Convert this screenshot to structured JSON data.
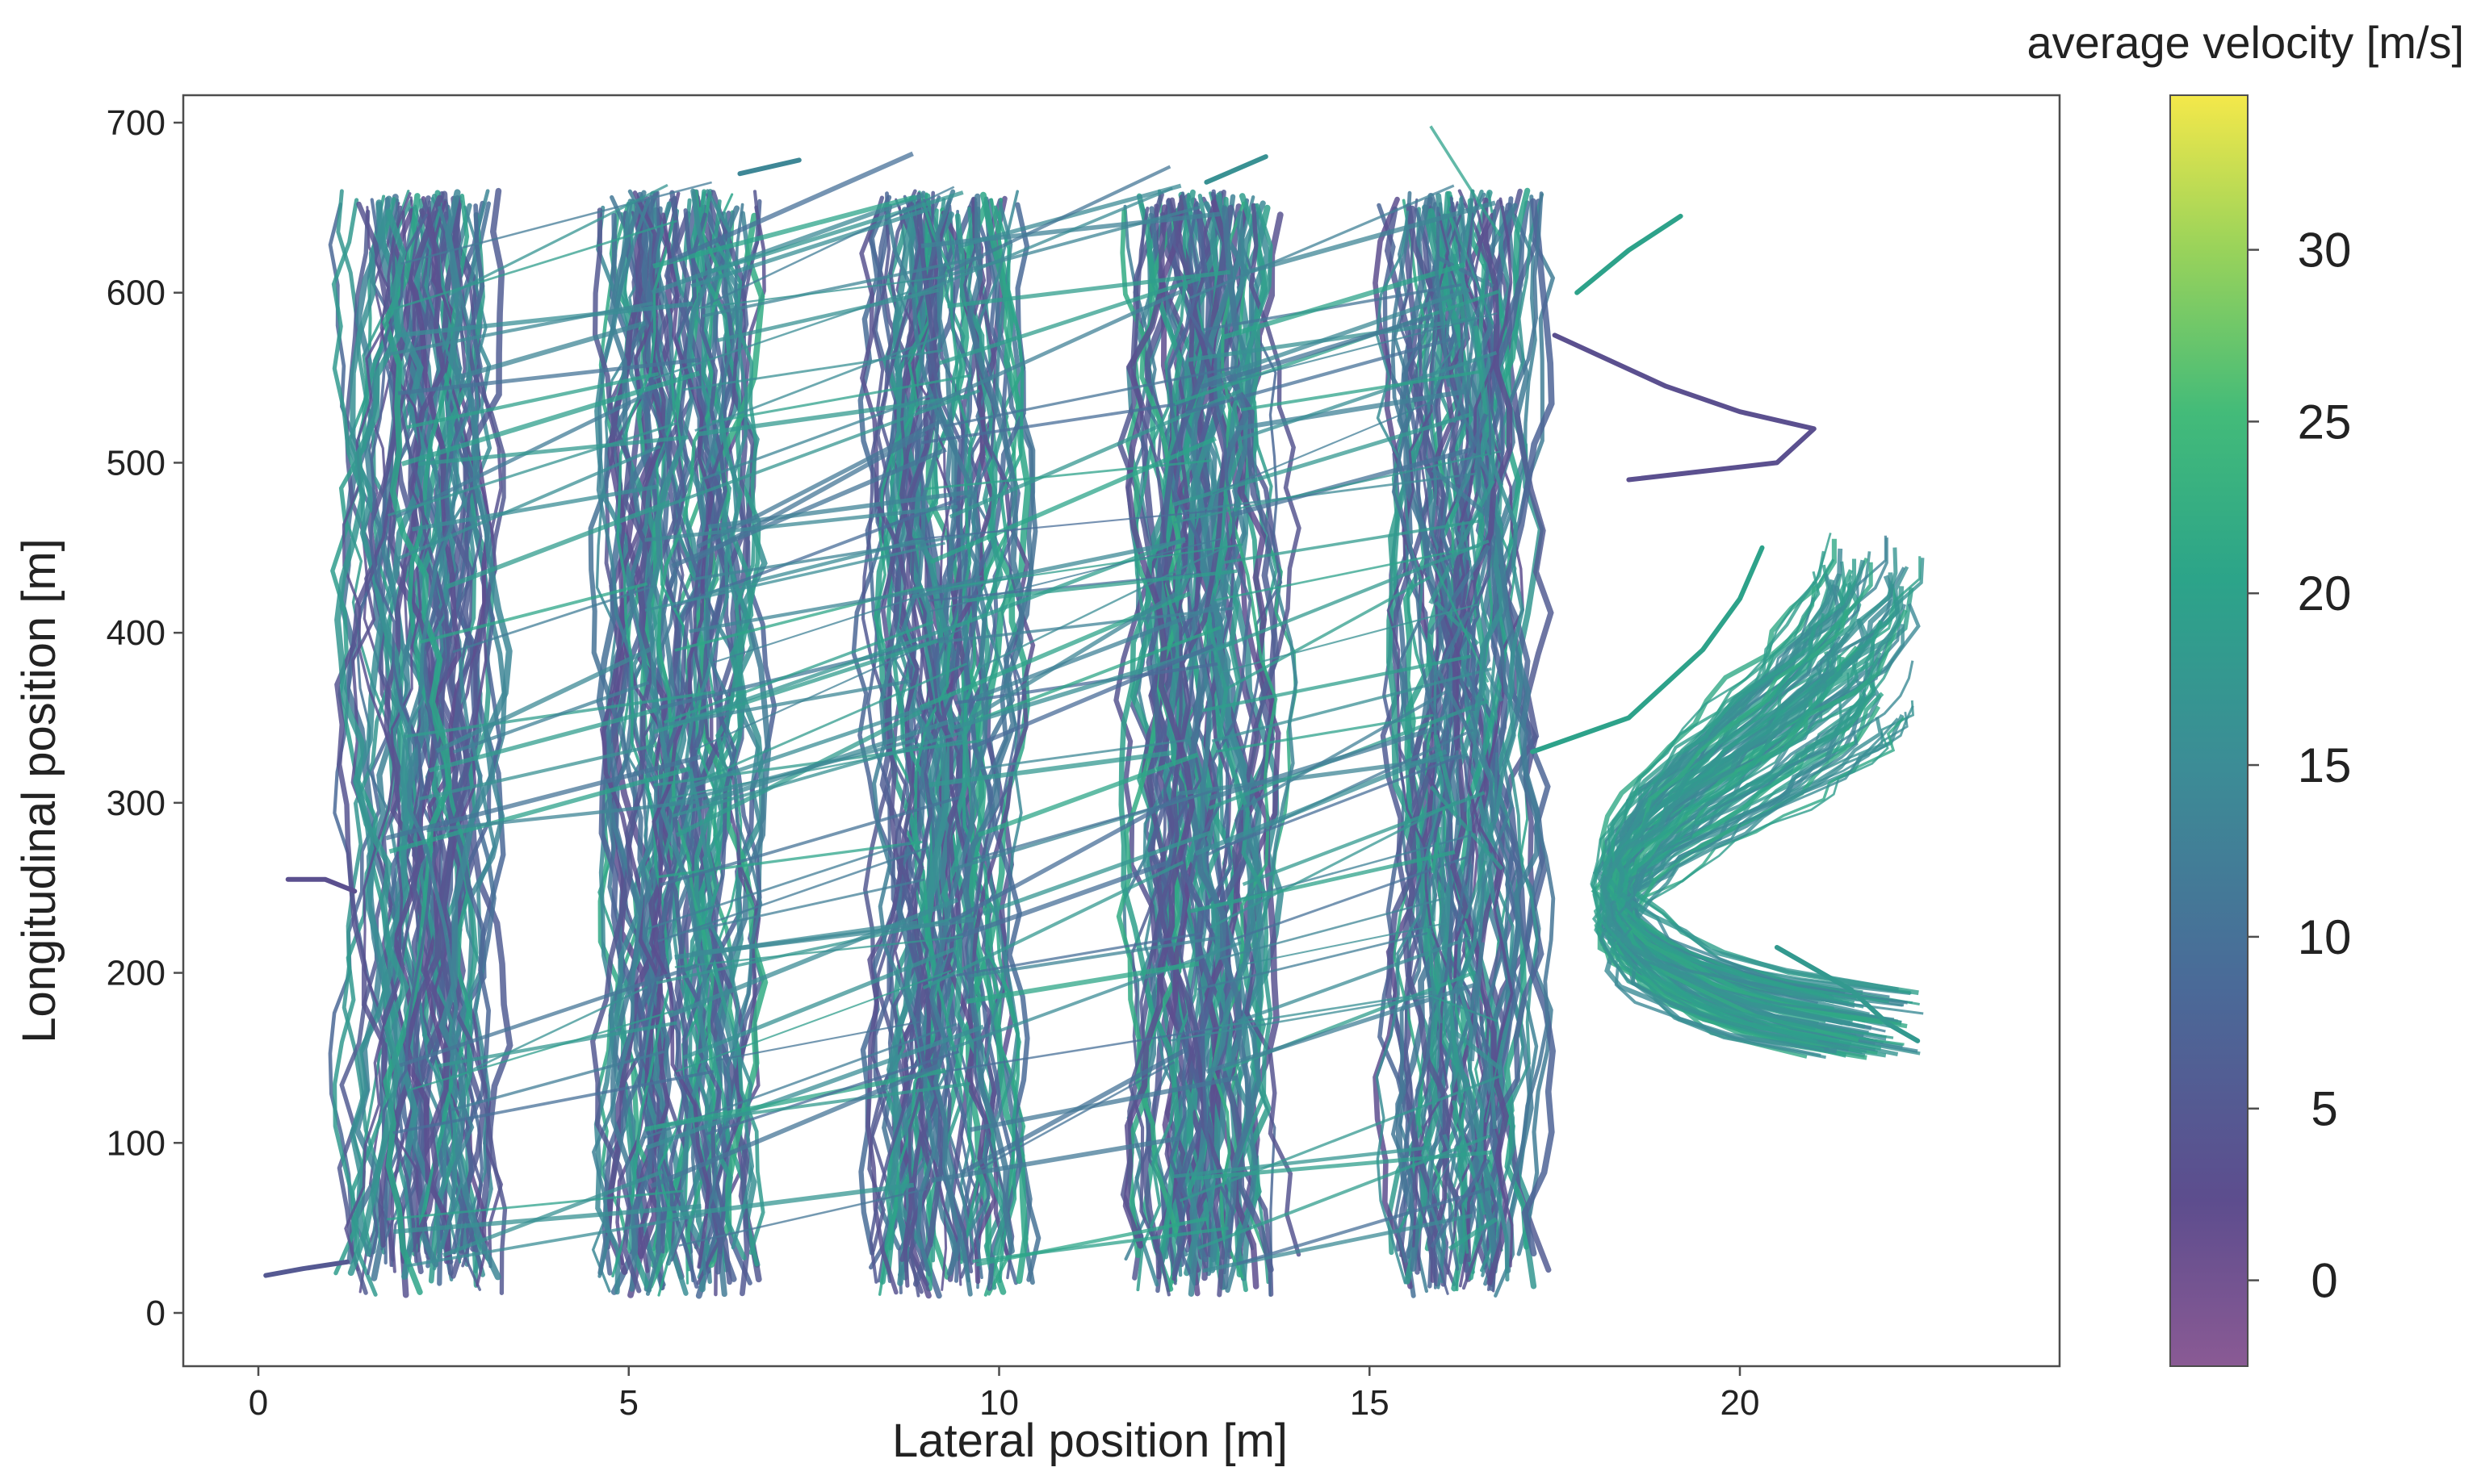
{
  "chart_data": {
    "type": "scatter",
    "title": "",
    "xlabel": "Lateral position [m]",
    "ylabel": "Longitudinal position [m]",
    "xlim": [
      -1,
      24.3
    ],
    "ylim": [
      -35,
      715
    ],
    "x_ticks": [
      0,
      5,
      10,
      15,
      20
    ],
    "y_ticks": [
      0,
      100,
      200,
      300,
      400,
      500,
      600,
      700
    ],
    "grid": false,
    "colormap": "viridis",
    "colorbar": {
      "label": "average velocity [m/s]",
      "range": [
        -2.5,
        34.5
      ],
      "ticks": [
        0,
        5,
        10,
        15,
        20,
        25,
        30
      ]
    },
    "lanes": [
      {
        "center_x": 2.2,
        "y_range": [
          10,
          660
        ]
      },
      {
        "center_x": 5.7,
        "y_range": [
          10,
          660
        ]
      },
      {
        "center_x": 9.3,
        "y_range": [
          10,
          660
        ]
      },
      {
        "center_x": 12.8,
        "y_range": [
          10,
          660
        ]
      },
      {
        "center_x": 16.3,
        "y_range": [
          10,
          660
        ]
      }
    ],
    "ramp": {
      "x_range": [
        17.0,
        22.5
      ],
      "y_range": [
        150,
        460
      ]
    },
    "notable_trajectories": [
      {
        "x": [
          17.5,
          19.0,
          20.0,
          21.0,
          20.5,
          19.5,
          18.5
        ],
        "y": [
          575,
          545,
          530,
          520,
          500,
          495,
          490
        ],
        "velocity": 3
      },
      {
        "x": [
          0.4,
          0.9,
          1.3
        ],
        "y": [
          255,
          255,
          248
        ],
        "velocity": 3
      },
      {
        "x": [
          0.1,
          0.6,
          1.2
        ],
        "y": [
          22,
          26,
          30
        ],
        "velocity": 5
      },
      {
        "x": [
          17.2,
          18.5,
          19.5,
          20.0,
          20.3
        ],
        "y": [
          330,
          350,
          390,
          420,
          450
        ],
        "velocity": 20
      },
      {
        "x": [
          17.8,
          18.5,
          19.2
        ],
        "y": [
          600,
          625,
          645
        ],
        "velocity": 20
      },
      {
        "x": [
          12.8,
          13.6
        ],
        "y": [
          665,
          680
        ],
        "velocity": 16
      },
      {
        "x": [
          6.5,
          7.3
        ],
        "y": [
          670,
          678
        ],
        "velocity": 14
      },
      {
        "x": [
          20.5,
          21.5,
          22.0,
          22.4
        ],
        "y": [
          215,
          190,
          170,
          160
        ],
        "velocity": 18
      }
    ]
  }
}
